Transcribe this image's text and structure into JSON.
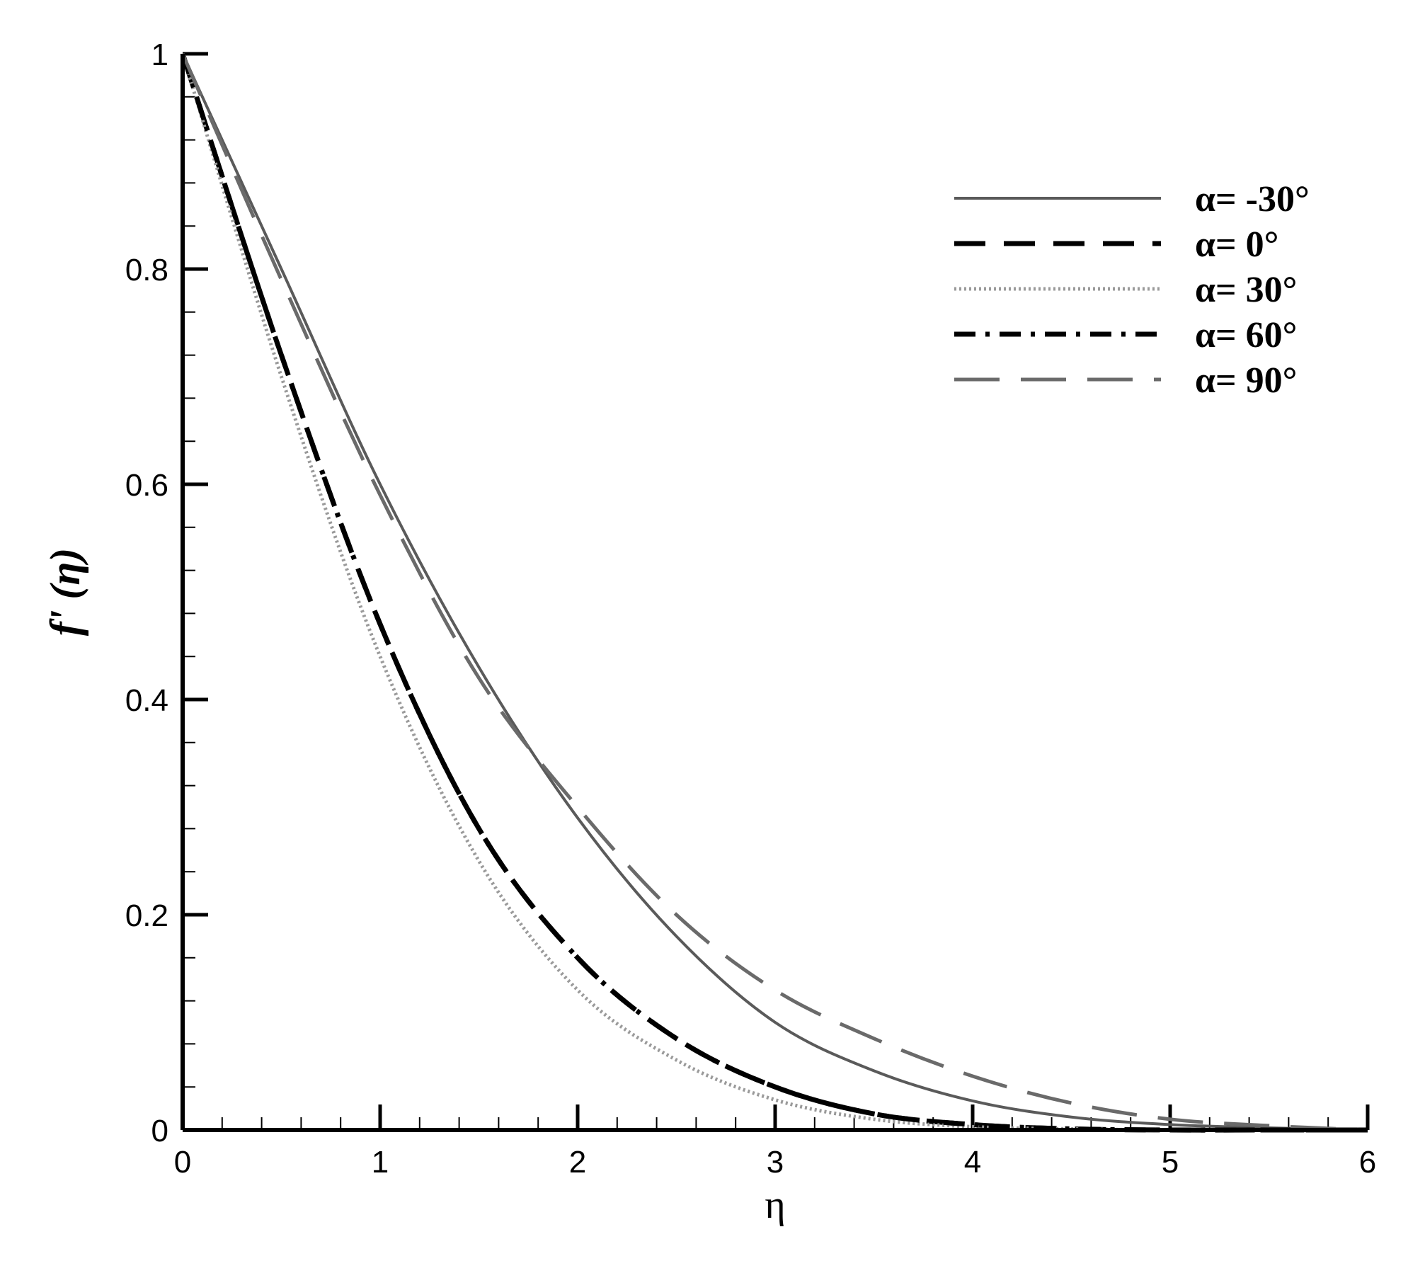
{
  "chart_data": {
    "type": "line",
    "xlabel": "η",
    "ylabel": "f' (η)",
    "xlim": [
      0,
      6
    ],
    "ylim": [
      0,
      1
    ],
    "x_ticks": [
      "0",
      "1",
      "2",
      "3",
      "4",
      "5",
      "6"
    ],
    "y_ticks": [
      "0",
      "0.2",
      "0.4",
      "0.6",
      "0.8",
      "1"
    ],
    "grid": false,
    "legend_position": "top-right",
    "series": [
      {
        "name": "α= -30°",
        "color": "#5a5a5a",
        "style": "solid",
        "x": [
          0,
          0.5,
          1,
          1.5,
          2,
          2.5,
          3,
          3.5,
          4,
          4.5,
          5,
          5.5,
          6
        ],
        "y": [
          1.0,
          0.8,
          0.6,
          0.43,
          0.29,
          0.18,
          0.1,
          0.055,
          0.027,
          0.012,
          0.005,
          0.002,
          0.0
        ]
      },
      {
        "name": "α= 0°",
        "color": "#000000",
        "style": "dashed",
        "x": [
          0,
          0.5,
          1,
          1.5,
          2,
          2.5,
          3,
          3.5,
          4,
          4.5,
          5,
          5.5,
          6
        ],
        "y": [
          1.0,
          0.72,
          0.47,
          0.28,
          0.16,
          0.085,
          0.04,
          0.015,
          0.005,
          0.001,
          0.0,
          0.0,
          0.0
        ]
      },
      {
        "name": "α= 30°",
        "color": "#9a9a9a",
        "style": "dotted",
        "x": [
          0,
          0.5,
          1,
          1.5,
          2,
          2.5,
          3,
          3.5,
          4,
          4.5,
          5,
          5.5,
          6
        ],
        "y": [
          1.0,
          0.7,
          0.44,
          0.25,
          0.13,
          0.065,
          0.028,
          0.01,
          0.003,
          0.001,
          0.0,
          0.0,
          0.0
        ]
      },
      {
        "name": "α= 60°",
        "color": "#000000",
        "style": "dashdot",
        "x": [
          0,
          0.5,
          1,
          1.5,
          2,
          2.5,
          3,
          3.5,
          4,
          4.5,
          5,
          5.5,
          6
        ],
        "y": [
          1.0,
          0.72,
          0.47,
          0.28,
          0.16,
          0.085,
          0.04,
          0.015,
          0.005,
          0.001,
          0.0,
          0.0,
          0.0
        ]
      },
      {
        "name": "α= 90°",
        "color": "#6a6a6a",
        "style": "longdash",
        "x": [
          0,
          0.5,
          1,
          1.5,
          2,
          2.5,
          3,
          3.5,
          4,
          4.5,
          5,
          5.5,
          6
        ],
        "y": [
          1.0,
          0.79,
          0.59,
          0.42,
          0.3,
          0.2,
          0.13,
          0.085,
          0.05,
          0.025,
          0.01,
          0.004,
          0.0
        ]
      }
    ]
  }
}
